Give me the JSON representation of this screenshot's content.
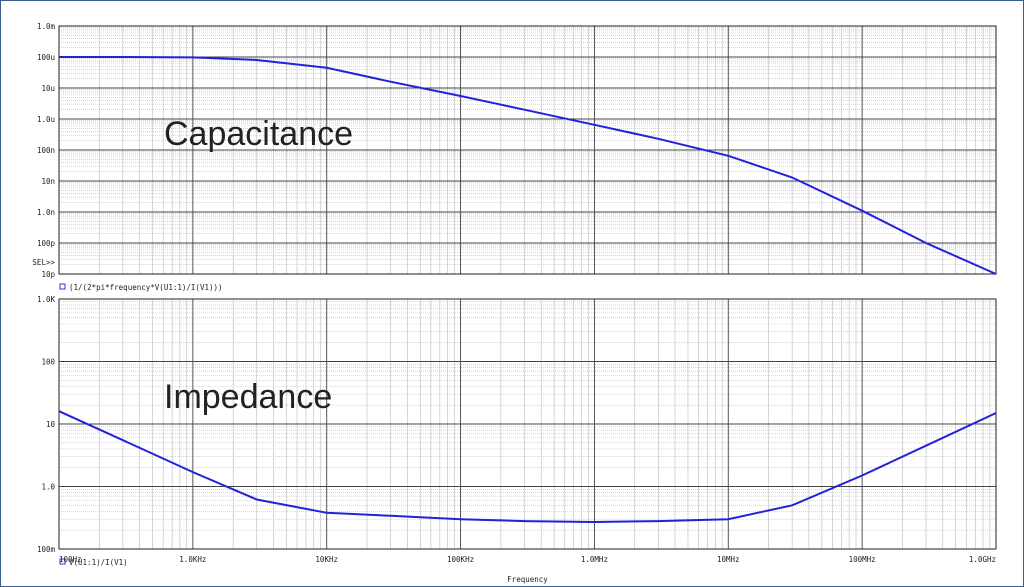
{
  "chart_data": [
    {
      "type": "line",
      "title": "Capacitance",
      "x_scale": "log",
      "y_scale": "log",
      "xlim": [
        100,
        1000000000
      ],
      "ylim": [
        1e-11,
        0.001
      ],
      "y_ticks": [
        {
          "value": 0.001,
          "label": "1.0m"
        },
        {
          "value": 0.0001,
          "label": "100u"
        },
        {
          "value": 1e-05,
          "label": "10u"
        },
        {
          "value": 1e-06,
          "label": "1.0u"
        },
        {
          "value": 1e-07,
          "label": "100n"
        },
        {
          "value": 1e-08,
          "label": "10n"
        },
        {
          "value": 1e-09,
          "label": "1.0n"
        },
        {
          "value": 1e-10,
          "label": "100p"
        },
        {
          "value": 1e-11,
          "label": "10p"
        }
      ],
      "marker_text": "SEL>>",
      "grid": true,
      "legend": "bottom-left",
      "series": [
        {
          "name": "(1/(2*pi*frequency*V(U1:1)/I(V1)))",
          "color": "#2222dd",
          "x": [
            100,
            300,
            1000,
            3000,
            10000,
            30000,
            100000,
            300000,
            1000000,
            3000000,
            10000000,
            30000000,
            100000000,
            300000000,
            1000000000
          ],
          "y": [
            0.0001,
            0.0001,
            9.7e-05,
            8e-05,
            4.5e-05,
            1.6e-05,
            5.5e-06,
            2e-06,
            6.5e-07,
            2.3e-07,
            6.5e-08,
            1.3e-08,
            1.1e-09,
            1e-10,
            1e-11
          ]
        }
      ]
    },
    {
      "type": "line",
      "title": "Impedance",
      "x_scale": "log",
      "y_scale": "log",
      "xlim": [
        100,
        1000000000
      ],
      "ylim": [
        0.1,
        1000
      ],
      "y_ticks": [
        {
          "value": 1000,
          "label": "1.0K"
        },
        {
          "value": 100,
          "label": "100"
        },
        {
          "value": 10,
          "label": "10"
        },
        {
          "value": 1,
          "label": "1.0"
        },
        {
          "value": 0.1,
          "label": "100m"
        }
      ],
      "x_ticks": [
        {
          "value": 100,
          "label": "100Hz"
        },
        {
          "value": 1000,
          "label": "1.0KHz"
        },
        {
          "value": 10000,
          "label": "10KHz"
        },
        {
          "value": 100000,
          "label": "100KHz"
        },
        {
          "value": 1000000,
          "label": "1.0MHz"
        },
        {
          "value": 10000000,
          "label": "10MHz"
        },
        {
          "value": 100000000,
          "label": "100MHz"
        },
        {
          "value": 1000000000,
          "label": "1.0GHz"
        }
      ],
      "xlabel": "Frequency",
      "grid": true,
      "legend": "bottom-left",
      "series": [
        {
          "name": "V(U1:1)/I(V1)",
          "color": "#2222dd",
          "x": [
            100,
            300,
            1000,
            3000,
            10000,
            30000,
            100000,
            300000,
            1000000,
            3000000,
            10000000,
            30000000,
            100000000,
            300000000,
            1000000000
          ],
          "y": [
            16,
            5.5,
            1.7,
            0.62,
            0.38,
            0.34,
            0.3,
            0.28,
            0.27,
            0.28,
            0.3,
            0.5,
            1.5,
            4.5,
            15
          ]
        }
      ]
    }
  ]
}
